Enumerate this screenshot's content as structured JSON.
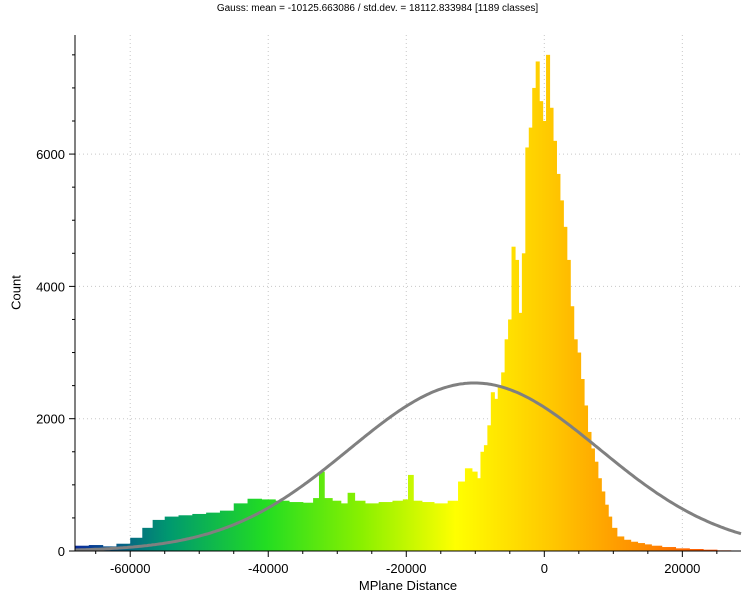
{
  "chart_data": {
    "type": "bar",
    "title": "Gauss: mean = -10125.663086 / std.dev. = 18112.833984 [1189 classes]",
    "xlabel": "MPlane Distance",
    "ylabel": "Count",
    "xlim": [
      -68000,
      28500
    ],
    "ylim": [
      0,
      7800
    ],
    "x_ticks": [
      -60000,
      -40000,
      -20000,
      0,
      20000
    ],
    "x_tick_labels": [
      "-60000",
      "-40000",
      "-20000",
      "0",
      "20000"
    ],
    "y_ticks": [
      0,
      2000,
      4000,
      6000
    ],
    "y_tick_labels": [
      "0",
      "2000",
      "4000",
      "6000"
    ],
    "grid": true,
    "colors": {
      "gradient": [
        "#0a2a9c",
        "#009a6e",
        "#22dd22",
        "#88f000",
        "#ffff00",
        "#ffc800",
        "#ff8a00",
        "#ff3a00"
      ],
      "gauss_curve": "#808080"
    },
    "histogram": {
      "x": [
        -67000,
        -65000,
        -63000,
        -61000,
        -59000,
        -57500,
        -56000,
        -54000,
        -52000,
        -50000,
        -48000,
        -46000,
        -44000,
        -42000,
        -40000,
        -38000,
        -36000,
        -34000,
        -33000,
        -32300,
        -31500,
        -30000,
        -29000,
        -28000,
        -27000,
        -25000,
        -23000,
        -21000,
        -20000,
        -19500,
        -18500,
        -17000,
        -15000,
        -13000,
        -12000,
        -11000,
        -10000,
        -9500,
        -9000,
        -8500,
        -8000,
        -7500,
        -7000,
        -6500,
        -6000,
        -5500,
        -5000,
        -4500,
        -4000,
        -3500,
        -3000,
        -2500,
        -2000,
        -1500,
        -1000,
        -500,
        0,
        500,
        1000,
        1500,
        2000,
        2500,
        3000,
        3500,
        4000,
        4500,
        5000,
        5500,
        6000,
        6500,
        7000,
        7500,
        8000,
        8500,
        9000,
        9500,
        10000,
        11000,
        12000,
        13000,
        14000,
        15000,
        16000,
        18000,
        20000,
        22000,
        24000,
        26000,
        28000
      ],
      "counts": [
        80,
        90,
        70,
        110,
        200,
        350,
        470,
        520,
        540,
        560,
        580,
        610,
        720,
        790,
        780,
        760,
        740,
        730,
        800,
        1200,
        800,
        760,
        720,
        880,
        760,
        720,
        740,
        760,
        780,
        1150,
        760,
        740,
        720,
        760,
        1050,
        1250,
        1200,
        1100,
        1500,
        1600,
        1900,
        2400,
        2300,
        2500,
        2700,
        3200,
        3500,
        4600,
        4400,
        3600,
        4500,
        6100,
        6400,
        7000,
        7400,
        6800,
        6500,
        7500,
        6700,
        6200,
        5700,
        5300,
        4900,
        4400,
        3700,
        3200,
        3000,
        2600,
        2200,
        1800,
        1550,
        1350,
        1100,
        900,
        700,
        520,
        350,
        220,
        170,
        140,
        120,
        100,
        80,
        60,
        40,
        30,
        20,
        10,
        0
      ]
    },
    "gauss": {
      "mean": -10125.663086,
      "std": 18112.833984,
      "peak": 2540
    }
  }
}
